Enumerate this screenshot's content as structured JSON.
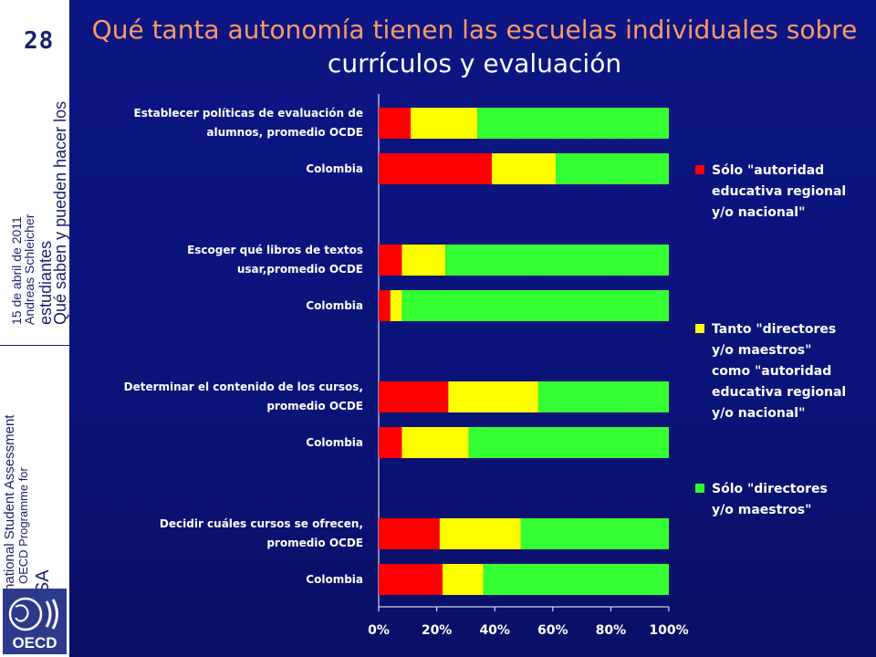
{
  "sidebar": {
    "page_number": "28",
    "talk_title_line1": "Qué saben y pueden hacer los",
    "talk_title_line2": "estudiantes",
    "author": "Andreas Schleicher",
    "date": "15 de abril de  2011",
    "pisa": "PISA",
    "programme_line1": "OECD Programme for",
    "programme_line2": "International Student Assessment",
    "logo_text": "OECD"
  },
  "title": {
    "part_orange": "Qué tanta autonomía tienen las escuelas individuales sobre",
    "part_white": "currículos y evaluación"
  },
  "colors": {
    "red": "#ff0000",
    "yellow": "#ffff00",
    "green": "#33ff33"
  },
  "chart_data": {
    "type": "bar",
    "orientation": "horizontal",
    "stacked": true,
    "categories": [
      [
        "Establecer políticas de evaluación de",
        "alumnos, promedio OCDE"
      ],
      [
        "Colombia"
      ],
      [
        "Escoger qué libros de textos",
        "usar,promedio OCDE"
      ],
      [
        "Colombia"
      ],
      [
        "Determinar el contenido de los cursos,",
        "promedio OCDE"
      ],
      [
        "Colombia"
      ],
      [
        "Decidir cuáles cursos se ofrecen,",
        "promedio OCDE"
      ],
      [
        "Colombia"
      ]
    ],
    "series": [
      {
        "name": "Sólo \"autoridad educativa regional y/o nacional\"",
        "color": "#ff0000",
        "values": [
          11,
          39,
          8,
          4,
          24,
          8,
          21,
          22
        ]
      },
      {
        "name": "Tanto \"directores y/o maestros\" como \"autoridad educativa regional y/o nacional\"",
        "color": "#ffff00",
        "values": [
          23,
          22,
          15,
          4,
          31,
          23,
          28,
          14
        ]
      },
      {
        "name": "Sólo \"directores y/o maestros\"",
        "color": "#33ff33",
        "values": [
          66,
          39,
          77,
          92,
          45,
          69,
          51,
          64
        ]
      }
    ],
    "x_ticks": [
      "0%",
      "20%",
      "40%",
      "60%",
      "80%",
      "100%"
    ],
    "xlim": [
      0,
      100
    ],
    "legend_position": "right",
    "grid": false
  }
}
